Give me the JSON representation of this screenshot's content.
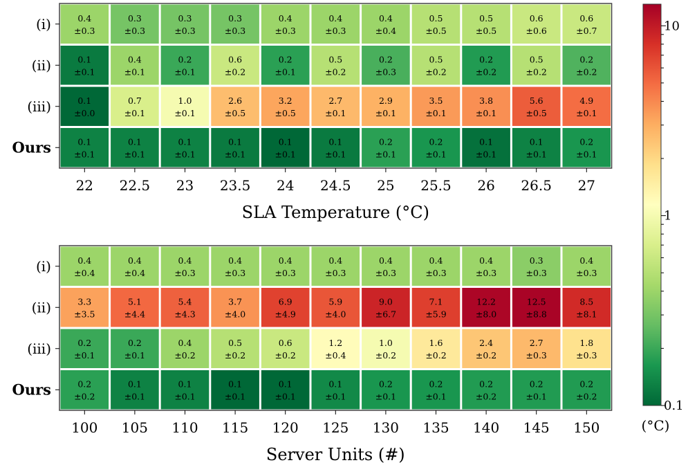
{
  "chart_data": [
    {
      "type": "heatmap",
      "xlabel": "SLA Temperature (°C)",
      "rows": [
        "(i)",
        "(ii)",
        "(iii)",
        "Ours"
      ],
      "row_bold": [
        false,
        false,
        false,
        true
      ],
      "categories": [
        "22",
        "22.5",
        "23",
        "23.5",
        "24",
        "24.5",
        "25",
        "25.5",
        "26",
        "26.5",
        "27"
      ],
      "means": [
        [
          "0.4",
          "0.3",
          "0.3",
          "0.3",
          "0.4",
          "0.4",
          "0.4",
          "0.5",
          "0.5",
          "0.6",
          "0.6"
        ],
        [
          "0.1",
          "0.4",
          "0.2",
          "0.6",
          "0.2",
          "0.5",
          "0.2",
          "0.5",
          "0.2",
          "0.5",
          "0.2"
        ],
        [
          "0.1",
          "0.7",
          "1.0",
          "2.6",
          "3.2",
          "2.7",
          "2.9",
          "3.5",
          "3.8",
          "5.6",
          "4.9"
        ],
        [
          "0.1",
          "0.1",
          "0.1",
          "0.1",
          "0.1",
          "0.1",
          "0.2",
          "0.2",
          "0.1",
          "0.1",
          "0.2"
        ]
      ],
      "stds": [
        [
          "±0.3",
          "±0.3",
          "±0.3",
          "±0.3",
          "±0.3",
          "±0.3",
          "±0.4",
          "±0.5",
          "±0.5",
          "±0.6",
          "±0.7"
        ],
        [
          "±0.1",
          "±0.1",
          "±0.1",
          "±0.2",
          "±0.1",
          "±0.2",
          "±0.3",
          "±0.2",
          "±0.2",
          "±0.2",
          "±0.2"
        ],
        [
          "±0.0",
          "±0.1",
          "±0.1",
          "±0.5",
          "±0.5",
          "±0.1",
          "±0.1",
          "±0.1",
          "±0.1",
          "±0.5",
          "±0.1"
        ],
        [
          "±0.1",
          "±0.1",
          "±0.1",
          "±0.1",
          "±0.1",
          "±0.1",
          "±0.1",
          "±0.1",
          "±0.1",
          "±0.1",
          "±0.1"
        ]
      ],
      "color_values": [
        [
          0.4,
          0.3,
          0.3,
          0.3,
          0.4,
          0.4,
          0.4,
          0.5,
          0.5,
          0.6,
          0.6
        ],
        [
          0.12,
          0.4,
          0.2,
          0.6,
          0.18,
          0.5,
          0.22,
          0.5,
          0.17,
          0.5,
          0.23
        ],
        [
          0.1,
          0.7,
          1.0,
          2.6,
          3.2,
          2.7,
          2.9,
          3.5,
          3.8,
          5.6,
          4.9
        ],
        [
          0.13,
          0.13,
          0.13,
          0.12,
          0.1,
          0.12,
          0.18,
          0.16,
          0.11,
          0.13,
          0.16
        ]
      ]
    },
    {
      "type": "heatmap",
      "xlabel": "Server Units (#)",
      "rows": [
        "(i)",
        "(ii)",
        "(iii)",
        "Ours"
      ],
      "row_bold": [
        false,
        false,
        false,
        true
      ],
      "categories": [
        "100",
        "105",
        "110",
        "115",
        "120",
        "125",
        "130",
        "135",
        "140",
        "145",
        "150"
      ],
      "means": [
        [
          "0.4",
          "0.4",
          "0.4",
          "0.4",
          "0.4",
          "0.4",
          "0.4",
          "0.4",
          "0.4",
          "0.3",
          "0.4"
        ],
        [
          "3.3",
          "5.1",
          "5.4",
          "3.7",
          "6.9",
          "5.9",
          "9.0",
          "7.1",
          "12.2",
          "12.5",
          "8.5"
        ],
        [
          "0.2",
          "0.2",
          "0.4",
          "0.5",
          "0.6",
          "1.2",
          "1.0",
          "1.6",
          "2.4",
          "2.7",
          "1.8"
        ],
        [
          "0.2",
          "0.1",
          "0.1",
          "0.1",
          "0.1",
          "0.1",
          "0.2",
          "0.2",
          "0.2",
          "0.2",
          "0.2"
        ]
      ],
      "stds": [
        [
          "±0.4",
          "±0.4",
          "±0.3",
          "±0.3",
          "±0.3",
          "±0.3",
          "±0.3",
          "±0.3",
          "±0.3",
          "±0.3",
          "±0.3"
        ],
        [
          "±3.5",
          "±4.4",
          "±4.3",
          "±4.0",
          "±4.9",
          "±4.0",
          "±6.7",
          "±5.9",
          "±8.0",
          "±8.8",
          "±8.1"
        ],
        [
          "±0.1",
          "±0.1",
          "±0.2",
          "±0.2",
          "±0.2",
          "±0.4",
          "±0.2",
          "±0.2",
          "±0.2",
          "±0.3",
          "±0.3"
        ],
        [
          "±0.2",
          "±0.1",
          "±0.1",
          "±0.1",
          "±0.1",
          "±0.1",
          "±0.1",
          "±0.1",
          "±0.2",
          "±0.1",
          "±0.2"
        ]
      ],
      "color_values": [
        [
          0.4,
          0.4,
          0.4,
          0.4,
          0.4,
          0.4,
          0.4,
          0.4,
          0.4,
          0.35,
          0.4
        ],
        [
          3.3,
          5.1,
          5.4,
          3.7,
          6.9,
          5.9,
          9.0,
          7.1,
          12.2,
          12.5,
          8.5
        ],
        [
          0.2,
          0.2,
          0.4,
          0.5,
          0.6,
          1.2,
          1.0,
          1.6,
          2.4,
          2.7,
          1.8
        ],
        [
          0.18,
          0.13,
          0.13,
          0.1,
          0.1,
          0.14,
          0.16,
          0.16,
          0.17,
          0.17,
          0.17
        ]
      ]
    }
  ],
  "colorbar": {
    "scale": "log",
    "min": 0.1,
    "max": 13,
    "major_ticks": [
      {
        "value": 0.1,
        "label": "0.1"
      },
      {
        "value": 1,
        "label": "1"
      },
      {
        "value": 10,
        "label": "10"
      }
    ],
    "minor_ticks": [
      0.2,
      0.3,
      0.4,
      0.5,
      0.6,
      0.7,
      0.8,
      0.9,
      2,
      3,
      4,
      5,
      6,
      7,
      8,
      9
    ],
    "unit_label": "(°C)"
  },
  "colormap_stops": [
    "#006837",
    "#1a9850",
    "#66bd63",
    "#a6d96a",
    "#d9ef8b",
    "#ffffbf",
    "#fee08b",
    "#fdae61",
    "#f46d43",
    "#d73027",
    "#a50026"
  ]
}
